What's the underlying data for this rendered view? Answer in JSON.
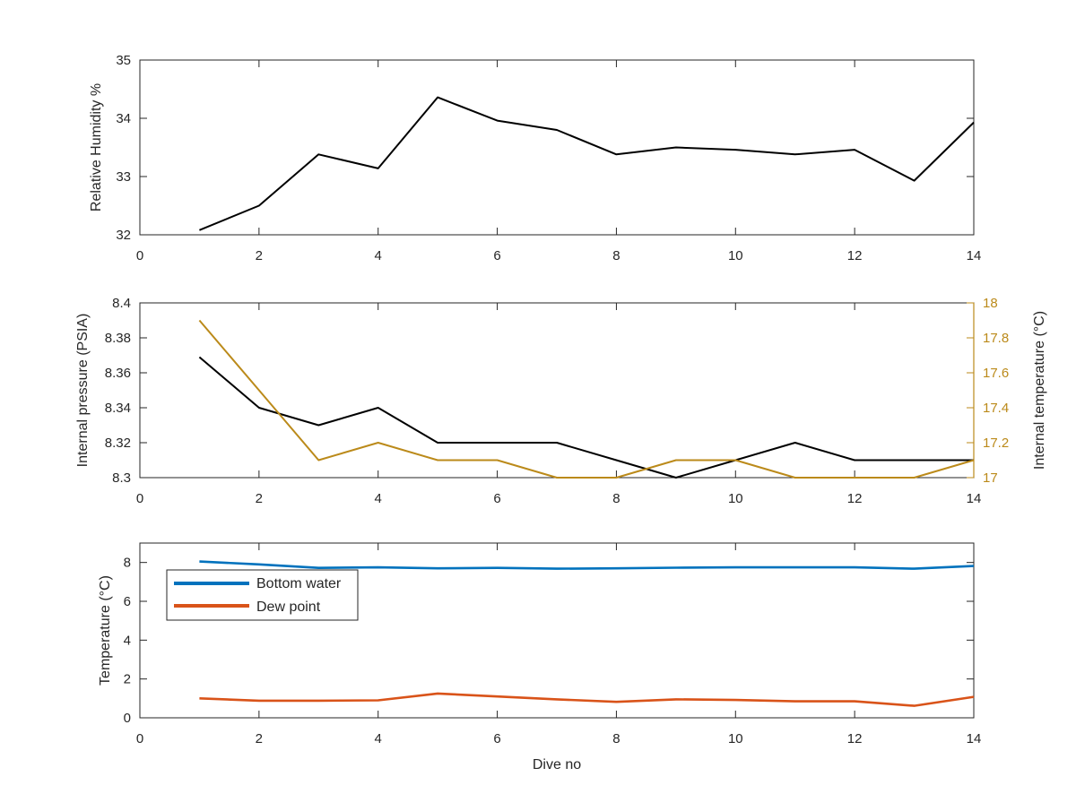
{
  "colors": {
    "axis": "#262626",
    "black_series": "#000000",
    "temperature_series": "#BB8A1A",
    "bottom_water": "#0072BD",
    "dew_point": "#D95319"
  },
  "chart_data": [
    {
      "type": "line",
      "xlim": [
        0,
        14
      ],
      "xticks": [
        0,
        2,
        4,
        6,
        8,
        10,
        12,
        14
      ],
      "ylim": [
        32,
        35
      ],
      "yticks": [
        32,
        33,
        34,
        35
      ],
      "xlabel": "",
      "ylabel": "Relative Humidity %",
      "grid": false,
      "series": [
        {
          "color": "#000000",
          "x": [
            1,
            2,
            3,
            4,
            5,
            6,
            7,
            8,
            9,
            10,
            11,
            12,
            13,
            14
          ],
          "values": [
            32.08,
            32.5,
            33.38,
            33.14,
            34.36,
            33.96,
            33.8,
            33.38,
            33.5,
            33.46,
            33.38,
            33.46,
            32.93,
            33.93
          ]
        }
      ]
    },
    {
      "type": "line",
      "xlim": [
        0,
        14
      ],
      "xticks": [
        0,
        2,
        4,
        6,
        8,
        10,
        12,
        14
      ],
      "ylim": [
        8.3,
        8.4
      ],
      "yticks": [
        8.3,
        8.32,
        8.34,
        8.36,
        8.38,
        8.4
      ],
      "ytick_labels": [
        "8.3",
        "8.32",
        "8.34",
        "8.36",
        "8.38",
        "8.4"
      ],
      "ylabel": "Internal pressure (PSIA)",
      "y2lim": [
        17,
        18
      ],
      "y2ticks": [
        17,
        17.2,
        17.4,
        17.6,
        17.8,
        18
      ],
      "y2tick_labels": [
        "17",
        "17.2",
        "17.4",
        "17.6",
        "17.8",
        "18"
      ],
      "y2label": "Internal temperature (°C)",
      "grid": false,
      "series": [
        {
          "axis": "left",
          "color": "#000000",
          "x": [
            1,
            2,
            3,
            4,
            5,
            6,
            7,
            8,
            9,
            10,
            11,
            12,
            13,
            14
          ],
          "values": [
            8.369,
            8.34,
            8.33,
            8.34,
            8.32,
            8.32,
            8.32,
            8.31,
            8.3,
            8.31,
            8.32,
            8.31,
            8.31,
            8.31
          ]
        },
        {
          "axis": "right",
          "color": "#BB8A1A",
          "x": [
            1,
            2,
            3,
            4,
            5,
            6,
            7,
            8,
            9,
            10,
            11,
            12,
            13,
            14
          ],
          "values": [
            17.9,
            17.5,
            17.1,
            17.2,
            17.1,
            17.1,
            17.0,
            17.0,
            17.1,
            17.1,
            17.0,
            17.0,
            17.0,
            17.1
          ]
        }
      ]
    },
    {
      "type": "line",
      "xlim": [
        0,
        14
      ],
      "xticks": [
        0,
        2,
        4,
        6,
        8,
        10,
        12,
        14
      ],
      "ylim": [
        0,
        9
      ],
      "yticks": [
        0,
        2,
        4,
        6,
        8
      ],
      "xlabel": "Dive no",
      "ylabel": "Temperature (°C)",
      "grid": false,
      "legend_position": "top-left",
      "series": [
        {
          "name": "Bottom water",
          "color": "#0072BD",
          "x": [
            1,
            2,
            3,
            4,
            5,
            6,
            7,
            8,
            9,
            10,
            11,
            12,
            13,
            14
          ],
          "values": [
            8.05,
            7.9,
            7.72,
            7.75,
            7.7,
            7.72,
            7.68,
            7.7,
            7.73,
            7.75,
            7.75,
            7.75,
            7.68,
            7.82
          ]
        },
        {
          "name": "Dew point",
          "color": "#D95319",
          "x": [
            1,
            2,
            3,
            4,
            5,
            6,
            7,
            8,
            9,
            10,
            11,
            12,
            13,
            14
          ],
          "values": [
            1.0,
            0.88,
            0.88,
            0.9,
            1.25,
            1.1,
            0.95,
            0.82,
            0.95,
            0.92,
            0.85,
            0.85,
            0.62,
            1.08
          ]
        }
      ]
    }
  ]
}
